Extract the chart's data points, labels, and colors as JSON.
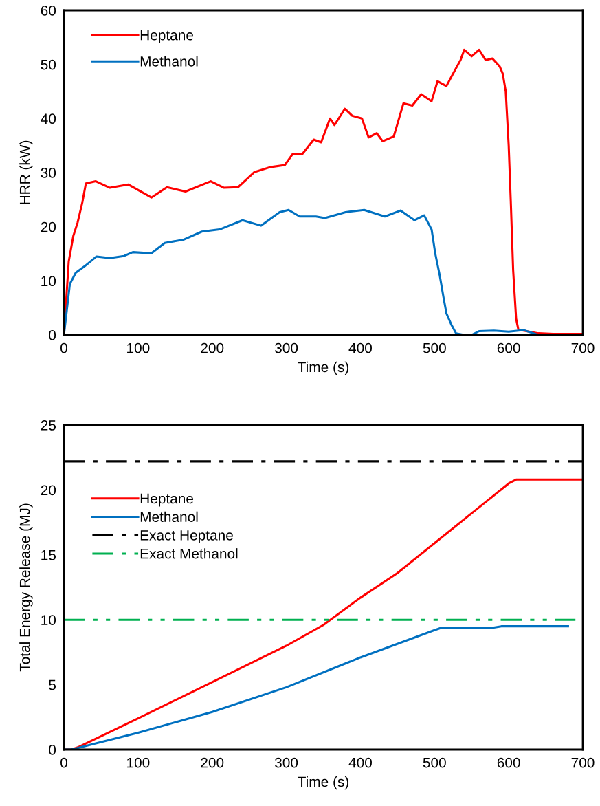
{
  "chart_data": [
    {
      "type": "line",
      "xlabel": "Time (s)",
      "ylabel": "HRR (kW)",
      "xlim": [
        0,
        700
      ],
      "xticks": [
        0,
        100,
        200,
        300,
        400,
        500,
        600,
        700
      ],
      "ylim": [
        0,
        60
      ],
      "yticks": [
        0,
        10,
        20,
        30,
        40,
        50,
        60
      ],
      "grid": false,
      "legend": "top left",
      "series": [
        {
          "name": "Heptane",
          "color": "#ff0000",
          "line_style": "solid",
          "x": [
            0,
            6.5,
            12.7,
            18.5,
            25,
            29.6,
            43,
            62,
            87,
            118,
            139,
            164,
            198,
            216,
            235,
            257,
            278,
            298,
            309,
            322,
            337,
            347,
            359,
            365,
            379,
            389,
            402,
            411,
            422,
            430,
            445,
            458,
            470,
            482,
            496,
            504,
            516,
            525,
            535,
            540,
            550,
            560,
            569,
            578,
            588,
            592,
            596,
            600,
            603,
            606,
            610,
            613,
            620,
            640,
            660,
            700
          ],
          "values": [
            0,
            13.6,
            18.3,
            20.8,
            24.6,
            28,
            28.4,
            27.2,
            27.8,
            25.4,
            27.3,
            26.5,
            28.4,
            27.2,
            27.3,
            30.1,
            31,
            31.4,
            33.5,
            33.5,
            36.1,
            35.6,
            40,
            38.8,
            41.8,
            40.5,
            40,
            36.5,
            37.3,
            35.8,
            36.7,
            42.8,
            42.4,
            44.5,
            43.2,
            46.9,
            46,
            48.3,
            50.8,
            52.7,
            51.5,
            52.7,
            50.8,
            51.1,
            49.6,
            48.3,
            45,
            35,
            24,
            12,
            3,
            1,
            0.8,
            0.3,
            0.2,
            0.2
          ]
        },
        {
          "name": "Methanol",
          "color": "#0070c0",
          "line_style": "solid",
          "x": [
            0,
            8,
            16,
            28,
            44,
            62,
            81,
            93,
            118,
            136,
            161,
            186,
            210,
            241,
            266,
            291,
            303,
            318,
            340,
            352,
            380,
            405,
            433,
            454,
            473,
            486,
            496,
            501,
            507,
            512,
            516,
            523,
            529,
            540,
            550,
            560,
            580,
            600,
            620,
            640,
            680
          ],
          "values": [
            0,
            9.4,
            11.5,
            12.7,
            14.5,
            14.2,
            14.6,
            15.3,
            15.1,
            17,
            17.6,
            19.1,
            19.5,
            21.2,
            20.2,
            22.7,
            23.1,
            21.9,
            21.9,
            21.6,
            22.7,
            23.1,
            21.9,
            23,
            21.2,
            22.1,
            19.5,
            15,
            11,
            7,
            4,
            1.8,
            0.3,
            0,
            0,
            0.7,
            0.8,
            0.6,
            0.9,
            0,
            0
          ]
        }
      ]
    },
    {
      "type": "line",
      "xlabel": "Time (s)",
      "ylabel": "Total Energy Release (MJ)",
      "xlim": [
        0,
        700
      ],
      "xticks": [
        0,
        100,
        200,
        300,
        400,
        500,
        600,
        700
      ],
      "ylim": [
        0,
        25
      ],
      "yticks": [
        0,
        5,
        10,
        15,
        20,
        25
      ],
      "grid": false,
      "legend": "left",
      "series": [
        {
          "name": "Heptane",
          "color": "#ff0000",
          "line_style": "solid",
          "x": [
            0,
            10,
            20,
            100,
            200,
            300,
            350,
            400,
            450,
            500,
            550,
            600,
            610,
            700
          ],
          "values": [
            0,
            0,
            0.2,
            2.4,
            5.2,
            8.0,
            9.6,
            11.7,
            13.6,
            15.9,
            18.2,
            20.5,
            20.8,
            20.8
          ]
        },
        {
          "name": "Methanol",
          "color": "#0070c0",
          "line_style": "solid",
          "x": [
            0,
            10,
            100,
            200,
            300,
            400,
            500,
            510,
            580,
            590,
            680
          ],
          "values": [
            0,
            0,
            1.3,
            2.9,
            4.8,
            7.1,
            9.2,
            9.4,
            9.4,
            9.5,
            9.5
          ]
        },
        {
          "name": "Exact Heptane",
          "color": "#000000",
          "line_style": "dashdot",
          "x": [
            0,
            700
          ],
          "values": [
            22.2,
            22.2
          ]
        },
        {
          "name": "Exact Methanol",
          "color": "#00b050",
          "line_style": "dashdotdot",
          "x": [
            0,
            690
          ],
          "values": [
            10.0,
            10.0
          ]
        }
      ]
    }
  ]
}
